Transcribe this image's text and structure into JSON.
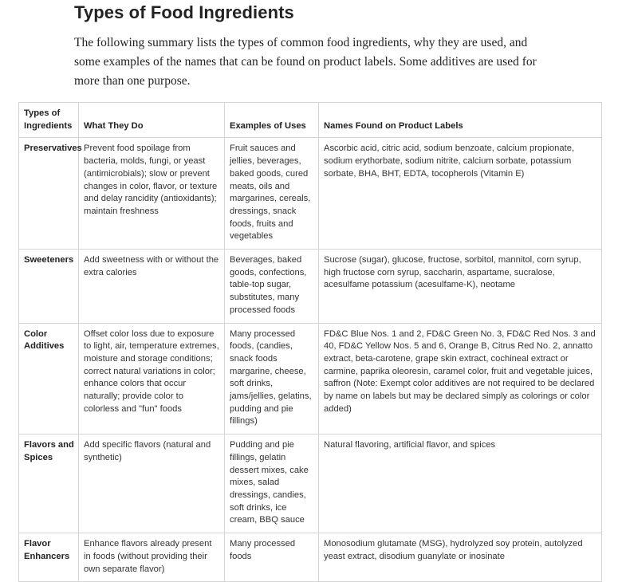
{
  "title": "Types of Food Ingredients",
  "intro": "The following summary lists the types of common food ingredients, why they are used, and some examples of the names that can be found on product labels. Some additives are used for more than one purpose.",
  "table": {
    "headers": {
      "type": "Types of Ingredients",
      "what": "What They Do",
      "uses": "Examples of Uses",
      "names": "Names Found on Product Labels"
    },
    "rows": [
      {
        "type": "Preservatives",
        "what": "Prevent food spoilage from bacteria, molds, fungi, or yeast (antimicrobials); slow or prevent changes in color, flavor, or texture and delay rancidity (antioxidants); maintain freshness",
        "uses": "Fruit sauces and jellies, beverages, baked goods, cured meats, oils and margarines, cereals, dressings, snack foods, fruits and vegetables",
        "names": "Ascorbic acid, citric acid, sodium benzoate, calcium propionate, sodium erythorbate, sodium nitrite, calcium sorbate, potassium sorbate, BHA, BHT, EDTA, tocopherols (Vitamin E)"
      },
      {
        "type": "Sweeteners",
        "what": "Add sweetness with or without the extra calories",
        "uses": "Beverages, baked goods, confections, table-top sugar, substitutes, many processed foods",
        "names": "Sucrose (sugar), glucose, fructose, sorbitol, mannitol, corn syrup, high fructose corn syrup, saccharin, aspartame, sucralose, acesulfame potassium (acesulfame-K), neotame"
      },
      {
        "type": "Color Additives",
        "what": "Offset color loss due to exposure to light, air, temperature extremes, moisture and storage conditions; correct natural variations in color; enhance colors that occur naturally; provide color to colorless and \"fun\" foods",
        "uses": "Many processed foods, (candies, snack foods margarine, cheese, soft drinks, jams/jellies, gelatins, pudding and pie fillings)",
        "names": "FD&C Blue Nos. 1 and 2, FD&C Green No. 3, FD&C Red Nos. 3 and 40, FD&C Yellow Nos. 5 and 6, Orange B, Citrus Red No. 2, annatto extract, beta-carotene, grape skin extract, cochineal extract or carmine, paprika oleoresin, caramel color, fruit and vegetable juices, saffron (Note: Exempt color additives are not required to be declared by name on labels but may be declared simply as colorings or color added)"
      },
      {
        "type": "Flavors and Spices",
        "what": "Add specific flavors (natural and synthetic)",
        "uses": "Pudding and pie fillings, gelatin dessert mixes, cake mixes, salad dressings, candies, soft drinks, ice cream, BBQ sauce",
        "names": "Natural flavoring, artificial flavor, and spices"
      },
      {
        "type": "Flavor Enhancers",
        "what": "Enhance flavors already present in foods (without providing their own separate flavor)",
        "uses": "Many processed foods",
        "names": "Monosodium glutamate (MSG), hydrolyzed soy protein, autolyzed yeast extract, disodium guanylate or inosinate"
      }
    ]
  }
}
